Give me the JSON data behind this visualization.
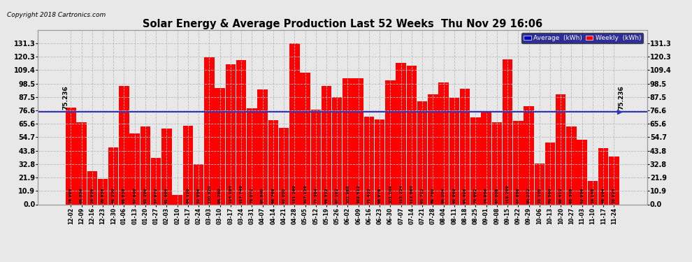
{
  "title": "Solar Energy & Average Production Last 52 Weeks  Thu Nov 29 16:06",
  "copyright": "Copyright 2018 Cartronics.com",
  "average_value": 75.236,
  "bar_color": "#FF0000",
  "average_color": "#3333BB",
  "plot_bg_color": "#E8E8E8",
  "grid_color": "#BBBBBB",
  "ylim": [
    0,
    142
  ],
  "yticks": [
    0.0,
    10.9,
    21.9,
    32.8,
    43.8,
    54.7,
    65.6,
    76.6,
    87.5,
    98.5,
    109.4,
    120.3,
    131.3
  ],
  "categories": [
    "12-02",
    "12-09",
    "12-16",
    "12-23",
    "12-30",
    "01-06",
    "01-13",
    "01-20",
    "01-27",
    "02-03",
    "02-10",
    "02-17",
    "02-24",
    "03-03",
    "03-10",
    "03-17",
    "03-24",
    "03-31",
    "04-07",
    "04-14",
    "04-21",
    "04-28",
    "05-05",
    "05-12",
    "05-19",
    "05-26",
    "06-02",
    "06-09",
    "06-16",
    "06-23",
    "06-30",
    "07-07",
    "07-14",
    "07-21",
    "07-28",
    "08-04",
    "08-11",
    "08-18",
    "08-25",
    "09-01",
    "09-08",
    "09-15",
    "09-22",
    "09-29",
    "10-06",
    "10-13",
    "10-20",
    "10-27",
    "11-03",
    "11-10",
    "11-17",
    "11-24"
  ],
  "values": [
    78.994,
    66.856,
    26.936,
    20.838,
    46.23,
    96.638,
    57.64,
    63.296,
    37.972,
    61.694,
    7.926,
    64.12,
    32.856,
    120.02,
    94.78,
    114.184,
    117.748,
    78.072,
    93.84,
    68.768,
    62.08,
    131.28,
    107.136,
    77.364,
    96.332,
    87.192,
    102.968,
    102.512,
    71.432,
    68.976,
    101.104,
    115.224,
    112.864,
    83.712,
    89.76,
    99.204,
    86.668,
    94.496,
    70.692,
    74.956,
    67.008,
    118.256,
    67.856,
    80.272,
    33.1,
    50.56,
    89.412,
    63.308,
    52.956,
    19.148,
    46.104,
    38.924
  ]
}
